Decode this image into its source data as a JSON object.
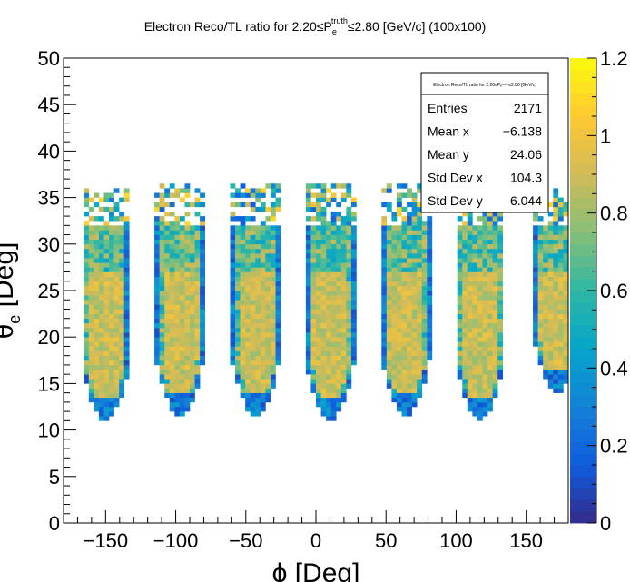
{
  "chart_data": {
    "type": "heatmap",
    "title": {
      "pre": "Electron Reco/TL ratio for 2.20≤P",
      "sub": "e",
      "sup": "truth",
      "post": "≤2.80 [GeV/c] (100x100)"
    },
    "xlabel": "ϕ  [Deg]",
    "ylabel": {
      "main": "θ",
      "sub": "e",
      "rest": " [Deg]"
    },
    "xlim": [
      -180,
      180
    ],
    "ylim": [
      0,
      50
    ],
    "bins": {
      "x": 100,
      "y": 100
    },
    "x_ticks": [
      -150,
      -100,
      -50,
      0,
      50,
      100,
      150
    ],
    "x_tick_labels": [
      "−150",
      "−100",
      "−50",
      "0",
      "50",
      "100",
      "150"
    ],
    "y_ticks": [
      0,
      5,
      10,
      15,
      20,
      25,
      30,
      35,
      40,
      45,
      50
    ],
    "y_tick_labels": [
      "0",
      "5",
      "10",
      "15",
      "20",
      "25",
      "30",
      "35",
      "40",
      "45",
      "50"
    ],
    "z_range": [
      0,
      1.2
    ],
    "z_ticks": [
      0,
      0.2,
      0.4,
      0.6,
      0.8,
      1,
      1.2
    ],
    "z_tick_labels": [
      "0",
      "0.2",
      "0.4",
      "0.6",
      "0.8",
      "1",
      "1.2"
    ],
    "colormap": [
      "#352a87",
      "#0f5cdd",
      "#1481d6",
      "#06a4ca",
      "#2eb7a4",
      "#87bf77",
      "#d1bb59",
      "#fec832",
      "#f9fb0e"
    ],
    "sectors": [
      {
        "phi_center": -150,
        "theta_min": 11,
        "theta_max": 36
      },
      {
        "phi_center": -97,
        "theta_min": 11.5,
        "theta_max": 36.5
      },
      {
        "phi_center": -43,
        "theta_min": 11.5,
        "theta_max": 36.5
      },
      {
        "phi_center": 10,
        "theta_min": 11,
        "theta_max": 36.5
      },
      {
        "phi_center": 64,
        "theta_min": 11.5,
        "theta_max": 36.5
      },
      {
        "phi_center": 117,
        "theta_min": 11,
        "theta_max": 36.5
      },
      {
        "phi_center": 172,
        "theta_min": 14,
        "theta_max": 36
      }
    ],
    "stats": {
      "title": "Electron Reco/TL ratio for 2.20≤Pₑᵗʳᵘᵗʰ≤2.80 [GeV/c]",
      "rows": [
        {
          "label": "Entries",
          "value": "2171"
        },
        {
          "label": "Mean x",
          "value": "−6.138"
        },
        {
          "label": "Mean y",
          "value": "24.06"
        },
        {
          "label": "Std Dev x",
          "value": "104.3"
        },
        {
          "label": "Std Dev y",
          "value": "6.044"
        }
      ]
    }
  }
}
